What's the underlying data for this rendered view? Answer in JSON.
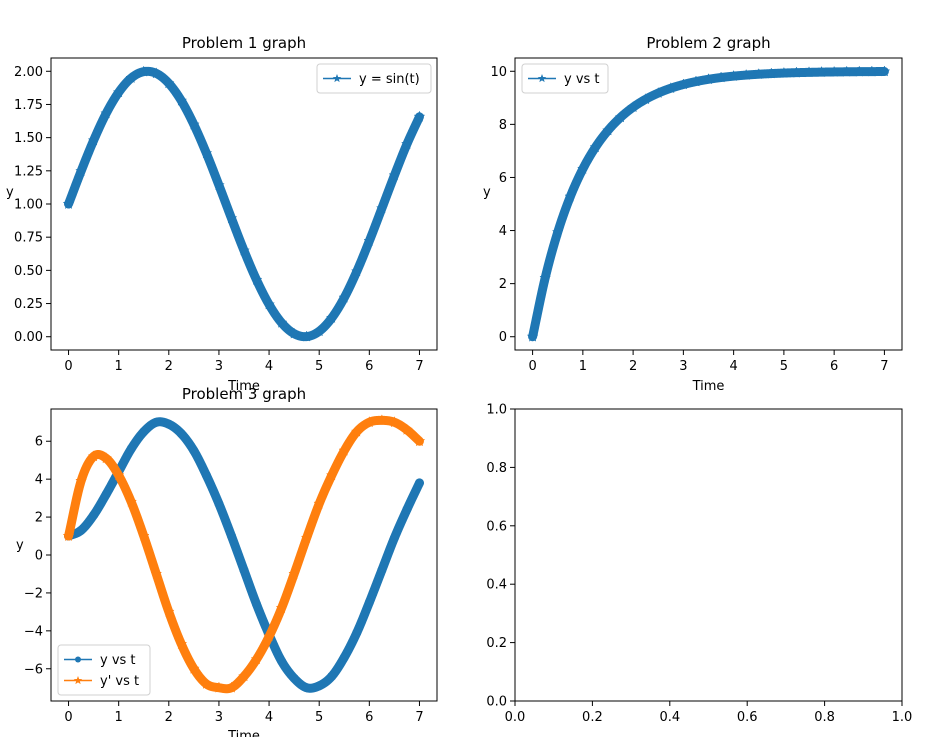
{
  "chart_data": [
    {
      "type": "line",
      "title": "Problem 1 graph",
      "xlabel": "Time",
      "ylabel": "y",
      "xlim": [
        -0.35,
        7.35
      ],
      "ylim": [
        -0.1,
        2.1
      ],
      "xticks": [
        0,
        1,
        2,
        3,
        4,
        5,
        6,
        7
      ],
      "xtick_labels": [
        "0",
        "1",
        "2",
        "3",
        "4",
        "5",
        "6",
        "7"
      ],
      "yticks": [
        0,
        0.25,
        0.5,
        0.75,
        1,
        1.25,
        1.5,
        1.75,
        2
      ],
      "ytick_labels": [
        "0.00",
        "0.25",
        "0.50",
        "0.75",
        "1.00",
        "1.25",
        "1.50",
        "1.75",
        "2.00"
      ],
      "legend_position": "top-right",
      "series": [
        {
          "name": "y = sin(t)",
          "color": "#1f77b4",
          "marker": "star",
          "x": [
            0,
            0.25,
            0.5,
            0.75,
            1,
            1.25,
            1.5,
            1.75,
            2,
            2.25,
            2.5,
            2.75,
            3,
            3.25,
            3.5,
            3.75,
            4,
            4.25,
            4.5,
            4.75,
            5,
            5.25,
            5.5,
            5.75,
            6,
            6.25,
            6.5,
            6.75,
            7
          ],
          "y": [
            1.0,
            1.247,
            1.479,
            1.682,
            1.841,
            1.949,
            1.997,
            1.984,
            1.909,
            1.778,
            1.598,
            1.382,
            1.141,
            0.892,
            0.649,
            0.428,
            0.243,
            0.105,
            0.023,
            0.001,
            0.041,
            0.141,
            0.294,
            0.492,
            0.721,
            0.967,
            1.215,
            1.451,
            1.657
          ]
        }
      ]
    },
    {
      "type": "line",
      "title": "Problem 2 graph",
      "xlabel": "Time",
      "ylabel": "y",
      "xlim": [
        -0.35,
        7.35
      ],
      "ylim": [
        -0.5,
        10.5
      ],
      "xticks": [
        0,
        1,
        2,
        3,
        4,
        5,
        6,
        7
      ],
      "xtick_labels": [
        "0",
        "1",
        "2",
        "3",
        "4",
        "5",
        "6",
        "7"
      ],
      "yticks": [
        0,
        2,
        4,
        6,
        8,
        10
      ],
      "ytick_labels": [
        "0",
        "2",
        "4",
        "6",
        "8",
        "10"
      ],
      "legend_position": "top-left",
      "series": [
        {
          "name": "y vs t",
          "color": "#1f77b4",
          "marker": "star",
          "x": [
            0,
            0.25,
            0.5,
            0.75,
            1,
            1.25,
            1.5,
            1.75,
            2,
            2.25,
            2.5,
            2.75,
            3,
            3.25,
            3.5,
            3.75,
            4,
            4.25,
            4.5,
            4.75,
            5,
            5.25,
            5.5,
            5.75,
            6,
            6.25,
            6.5,
            6.75,
            7
          ],
          "y": [
            0,
            2.212,
            3.935,
            5.276,
            6.321,
            7.135,
            7.769,
            8.262,
            8.647,
            8.946,
            9.179,
            9.361,
            9.502,
            9.612,
            9.698,
            9.765,
            9.817,
            9.857,
            9.889,
            9.913,
            9.933,
            9.948,
            9.959,
            9.968,
            9.975,
            9.981,
            9.985,
            9.988,
            9.991
          ]
        }
      ]
    },
    {
      "type": "line",
      "title": "Problem 3 graph",
      "xlabel": "Time",
      "ylabel": "y",
      "xlim": [
        -0.35,
        7.35
      ],
      "ylim": [
        -7.7,
        7.7
      ],
      "xticks": [
        0,
        1,
        2,
        3,
        4,
        5,
        6,
        7
      ],
      "xtick_labels": [
        "0",
        "1",
        "2",
        "3",
        "4",
        "5",
        "6",
        "7"
      ],
      "yticks": [
        -6,
        -4,
        -2,
        0,
        2,
        4,
        6
      ],
      "ytick_labels": [
        "−6",
        "−4",
        "−2",
        "0",
        "2",
        "4",
        "6"
      ],
      "legend_position": "bottom-left",
      "series": [
        {
          "name": "y vs t",
          "color": "#1f77b4",
          "marker": "dot",
          "x": [
            0,
            0.25,
            0.5,
            0.75,
            1,
            1.25,
            1.5,
            1.75,
            2,
            2.25,
            2.5,
            2.75,
            3,
            3.25,
            3.5,
            3.75,
            4,
            4.25,
            4.5,
            4.75,
            5,
            5.25,
            5.5,
            5.75,
            6,
            6.25,
            6.5,
            6.75,
            7
          ],
          "y": [
            1.0,
            1.3,
            2.1,
            3.2,
            4.4,
            5.6,
            6.5,
            7.0,
            6.9,
            6.4,
            5.5,
            4.2,
            2.7,
            1.0,
            -0.8,
            -2.6,
            -4.2,
            -5.6,
            -6.5,
            -7.0,
            -6.9,
            -6.4,
            -5.4,
            -4.1,
            -2.5,
            -0.8,
            0.9,
            2.4,
            3.8
          ]
        },
        {
          "name": "y' vs t",
          "color": "#ff7f0e",
          "marker": "star",
          "x": [
            0,
            0.25,
            0.5,
            0.75,
            1,
            1.25,
            1.5,
            1.75,
            2,
            2.25,
            2.5,
            2.75,
            3,
            3.25,
            3.5,
            3.75,
            4,
            4.25,
            4.5,
            4.75,
            5,
            5.25,
            5.5,
            5.75,
            6,
            6.25,
            6.5,
            6.75,
            7
          ],
          "y": [
            1.0,
            3.9,
            5.2,
            5.1,
            4.2,
            2.8,
            1.0,
            -1.0,
            -3.0,
            -4.7,
            -6.0,
            -6.8,
            -7.0,
            -7.0,
            -6.4,
            -5.5,
            -4.3,
            -2.8,
            -1.0,
            0.9,
            2.7,
            4.2,
            5.5,
            6.5,
            7.0,
            7.1,
            7.0,
            6.6,
            6.0
          ]
        }
      ]
    },
    {
      "type": "line",
      "title": "",
      "xlabel": "",
      "ylabel": "",
      "xlim": [
        0,
        1
      ],
      "ylim": [
        0,
        1
      ],
      "xticks": [
        0,
        0.2,
        0.4,
        0.6,
        0.8,
        1
      ],
      "xtick_labels": [
        "0.0",
        "0.2",
        "0.4",
        "0.6",
        "0.8",
        "1.0"
      ],
      "yticks": [
        0,
        0.2,
        0.4,
        0.6,
        0.8,
        1
      ],
      "ytick_labels": [
        "0.0",
        "0.2",
        "0.4",
        "0.6",
        "0.8",
        "1.0"
      ],
      "series": []
    }
  ]
}
